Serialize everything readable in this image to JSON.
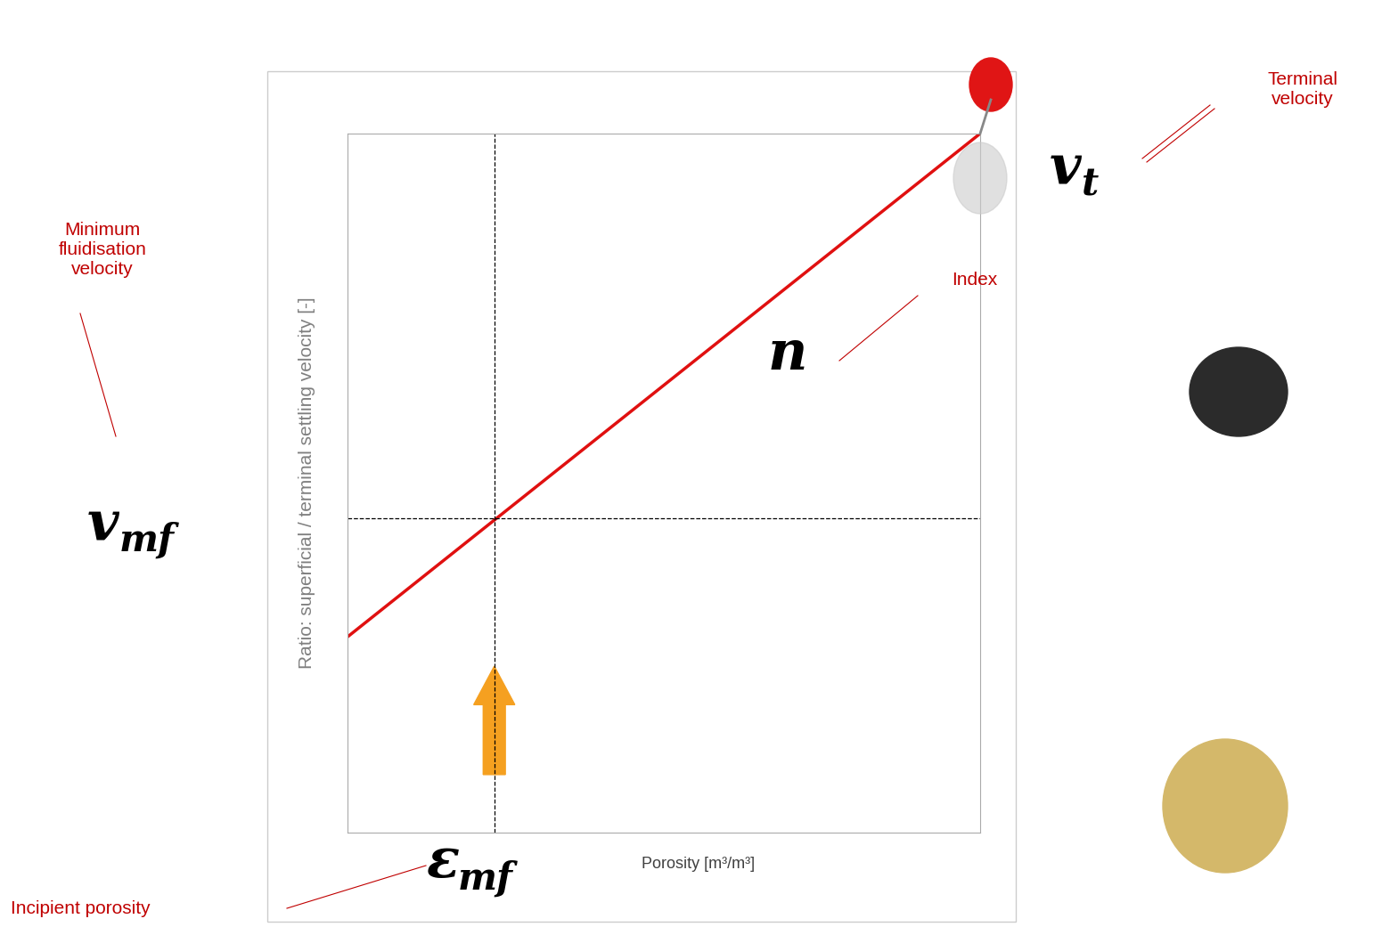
{
  "chart_data": {
    "type": "line",
    "x_label": "Porosity [m³/m³]",
    "y_label": "Ratio: superficial / terminal settling velocity [-]",
    "x": [
      0,
      1
    ],
    "values": [
      0.28,
      1.0
    ],
    "color": "#e01010",
    "xlim": [
      0,
      1
    ],
    "ylim": [
      0,
      1
    ],
    "tick_labels": false,
    "reference": {
      "x": 0.232,
      "y": 0.45,
      "line_style": "dashed"
    },
    "annotations": [
      {
        "text": "Terminal\nvelocity",
        "symbol": "v",
        "subscript": "t"
      },
      {
        "text": "Minimum\nfluidisation\nvelocity",
        "symbol": "v",
        "subscript": "mf"
      },
      {
        "text": "Index",
        "symbol": "n"
      },
      {
        "text": "Incipient porosity",
        "symbol": "ε",
        "subscript": "mf"
      }
    ]
  }
}
